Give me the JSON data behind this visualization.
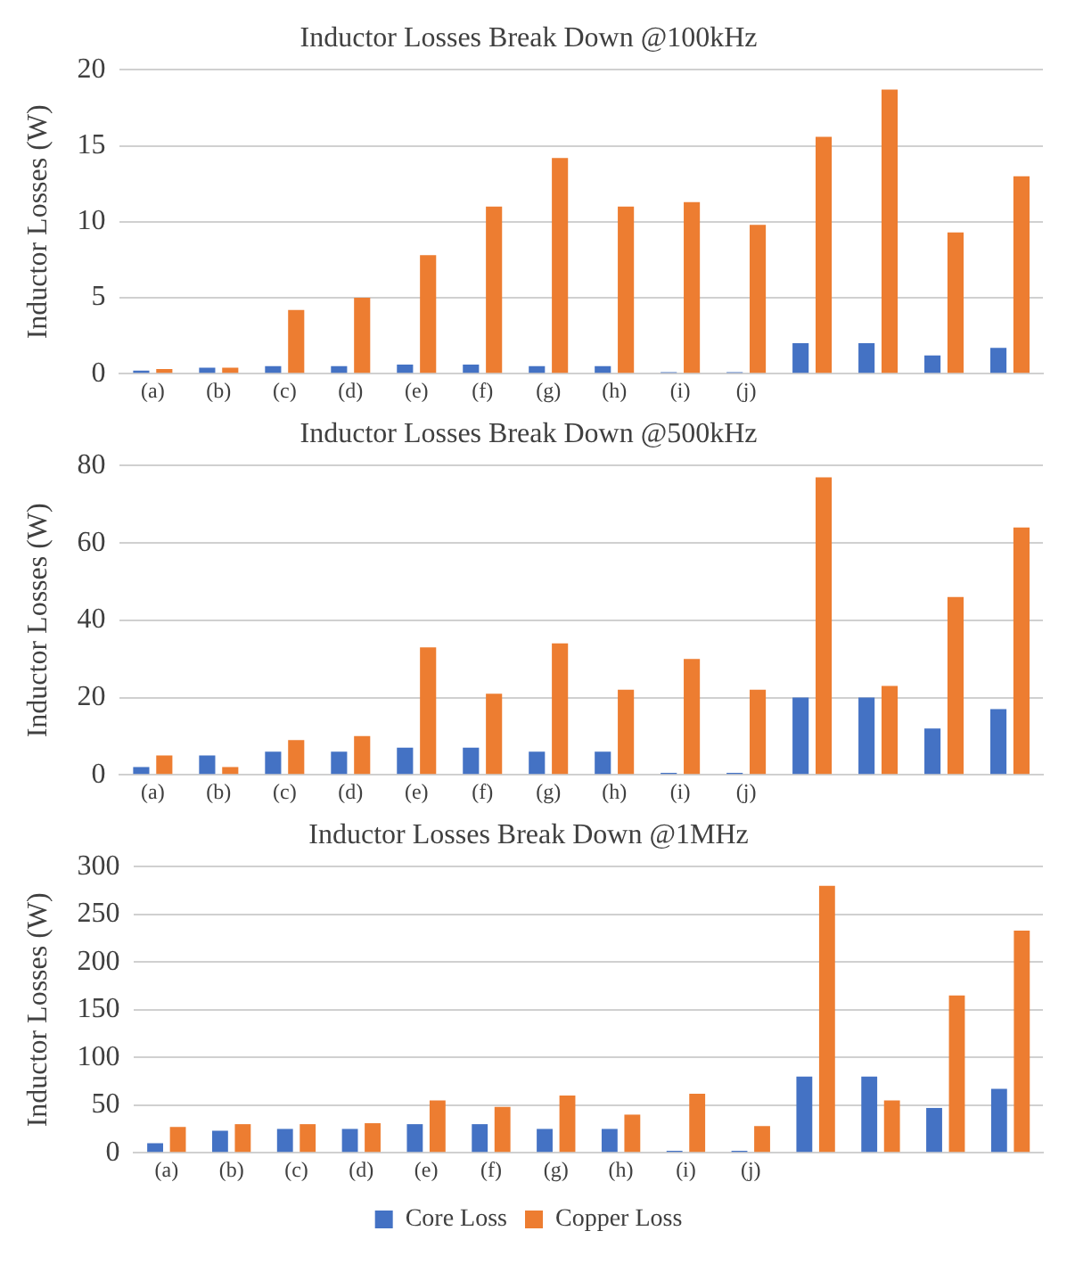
{
  "chart_data": [
    {
      "type": "bar",
      "title": "Inductor Losses Break Down @100kHz",
      "ylabel": "Inductor Losses (W)",
      "categories": [
        "(a)",
        "(b)",
        "(c)",
        "(d)",
        "(e)",
        "(f)",
        "(g)",
        "(h)",
        "(i)",
        "(j)",
        null,
        null,
        null,
        null
      ],
      "ylim": [
        0,
        20
      ],
      "yticks": [
        0,
        5,
        10,
        15,
        20
      ],
      "grid": "y",
      "series": [
        {
          "color": "#4472c4",
          "values": [
            0.2,
            0.4,
            0.5,
            0.5,
            0.6,
            0.6,
            0.5,
            0.5,
            0.1,
            0.1,
            2.0,
            2.0,
            1.2,
            1.7
          ]
        },
        {
          "color": "#ed7d31",
          "values": [
            0.3,
            0.4,
            4.2,
            5.0,
            7.8,
            11.0,
            14.2,
            11.0,
            11.3,
            9.8,
            15.6,
            18.7,
            9.3,
            13.0
          ]
        }
      ]
    },
    {
      "type": "bar",
      "title": "Inductor Losses Break Down @500kHz",
      "ylabel": "Inductor Losses (W)",
      "categories": [
        "(a)",
        "(b)",
        "(c)",
        "(d)",
        "(e)",
        "(f)",
        "(g)",
        "(h)",
        "(i)",
        "(j)",
        null,
        null,
        null,
        null
      ],
      "ylim": [
        0,
        80
      ],
      "yticks": [
        0,
        20,
        40,
        60,
        80
      ],
      "grid": "y",
      "series": [
        {
          "color": "#4472c4",
          "values": [
            2,
            5,
            6,
            6,
            7,
            7,
            6,
            6,
            0.5,
            0.5,
            20,
            20,
            12,
            17
          ]
        },
        {
          "color": "#ed7d31",
          "values": [
            5,
            2,
            9,
            10,
            33,
            21,
            34,
            22,
            30,
            22,
            77,
            23,
            46,
            64
          ]
        }
      ]
    },
    {
      "type": "bar",
      "title": "Inductor Losses Break Down @1MHz",
      "ylabel": "Inductor Losses (W)",
      "categories": [
        "(a)",
        "(b)",
        "(c)",
        "(d)",
        "(e)",
        "(f)",
        "(g)",
        "(h)",
        "(i)",
        "(j)",
        null,
        null,
        null,
        null
      ],
      "ylim": [
        0,
        300
      ],
      "yticks": [
        0,
        50,
        100,
        150,
        200,
        250,
        300
      ],
      "grid": "y",
      "legend": "bottom",
      "series": [
        {
          "name": "Core Loss",
          "color": "#4472c4",
          "values": [
            10,
            23,
            25,
            25,
            30,
            30,
            25,
            25,
            2,
            2,
            80,
            80,
            47,
            67
          ]
        },
        {
          "name": "Copper Loss",
          "color": "#ed7d31",
          "values": [
            27,
            30,
            30,
            31,
            55,
            48,
            60,
            40,
            62,
            28,
            280,
            55,
            165,
            233
          ]
        }
      ]
    }
  ]
}
